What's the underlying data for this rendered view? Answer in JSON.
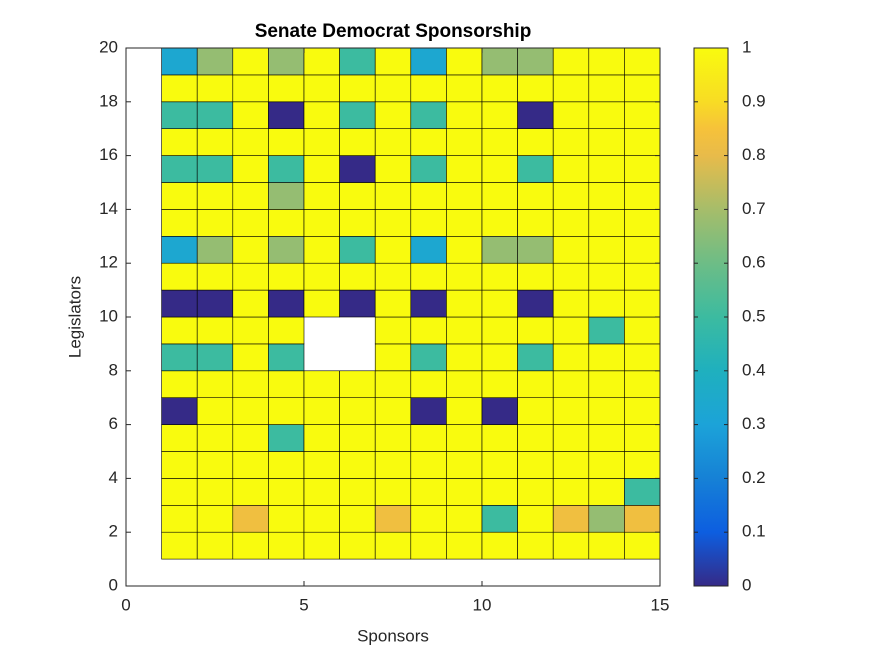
{
  "chart_data": {
    "type": "heatmap",
    "title": "Senate Democrat Sponsorship",
    "x_label": "Sponsors",
    "y_label": "Legislators",
    "x_edges": [
      1,
      2,
      3,
      4,
      5,
      6,
      7,
      8,
      9,
      10,
      11,
      12,
      13,
      14,
      15
    ],
    "y_edges": [
      1,
      2,
      3,
      4,
      5,
      6,
      7,
      8,
      9,
      10,
      11,
      12,
      13,
      14,
      15,
      16,
      17,
      18,
      19,
      20
    ],
    "values": [
      [
        1,
        1,
        1,
        1,
        1,
        1,
        1,
        1,
        1,
        1,
        1,
        1,
        1,
        1
      ],
      [
        1,
        1,
        0.83,
        1,
        1,
        1,
        0.83,
        1,
        1,
        0.5,
        1,
        0.83,
        0.67,
        0.83
      ],
      [
        1,
        1,
        1,
        1,
        1,
        1,
        1,
        1,
        1,
        1,
        1,
        1,
        1,
        0.5
      ],
      [
        1,
        1,
        1,
        1,
        1,
        1,
        1,
        1,
        1,
        1,
        1,
        1,
        1,
        1
      ],
      [
        1,
        1,
        1,
        0.5,
        1,
        1,
        1,
        1,
        1,
        1,
        1,
        1,
        1,
        1
      ],
      [
        0,
        1,
        1,
        1,
        1,
        1,
        1,
        0,
        1,
        0,
        1,
        1,
        1,
        1
      ],
      [
        1,
        1,
        1,
        1,
        1,
        1,
        1,
        1,
        1,
        1,
        1,
        1,
        1,
        1
      ],
      [
        0.5,
        0.5,
        1,
        0.5,
        null,
        null,
        1,
        0.5,
        1,
        1,
        0.5,
        1,
        1,
        1
      ],
      [
        1,
        1,
        1,
        1,
        null,
        null,
        1,
        1,
        1,
        1,
        1,
        1,
        0.5,
        1
      ],
      [
        0,
        0,
        1,
        0,
        1,
        0,
        1,
        0,
        1,
        1,
        0,
        1,
        1,
        1
      ],
      [
        1,
        1,
        1,
        1,
        1,
        1,
        1,
        1,
        1,
        1,
        1,
        1,
        1,
        1
      ],
      [
        0.33,
        0.67,
        1,
        0.67,
        1,
        0.5,
        1,
        0.33,
        1,
        0.67,
        0.67,
        1,
        1,
        1
      ],
      [
        1,
        1,
        1,
        1,
        1,
        1,
        1,
        1,
        1,
        1,
        1,
        1,
        1,
        1
      ],
      [
        1,
        1,
        1,
        0.67,
        1,
        1,
        1,
        1,
        1,
        1,
        1,
        1,
        1,
        1
      ],
      [
        0.5,
        0.5,
        1,
        0.5,
        1,
        0,
        1,
        0.5,
        1,
        1,
        0.5,
        1,
        1,
        1
      ],
      [
        1,
        1,
        1,
        1,
        1,
        1,
        1,
        1,
        1,
        1,
        1,
        1,
        1,
        1
      ],
      [
        0.5,
        0.5,
        1,
        0,
        1,
        0.5,
        1,
        0.5,
        1,
        1,
        0,
        1,
        1,
        1
      ],
      [
        1,
        1,
        1,
        1,
        1,
        1,
        1,
        1,
        1,
        1,
        1,
        1,
        1,
        1
      ],
      [
        0.33,
        0.67,
        1,
        0.67,
        1,
        0.5,
        1,
        0.33,
        1,
        0.67,
        0.67,
        1,
        1,
        1
      ]
    ],
    "xlim": [
      0,
      15
    ],
    "xticks": [
      0,
      5,
      10,
      15
    ],
    "ylim": [
      0,
      20
    ],
    "yticks": [
      0,
      2,
      4,
      6,
      8,
      10,
      12,
      14,
      16,
      18,
      20
    ],
    "clim": [
      0,
      1
    ],
    "cticks": [
      0,
      0.1,
      0.2,
      0.3,
      0.4,
      0.5,
      0.6,
      0.7,
      0.8,
      0.9,
      1
    ],
    "colormap": [
      {
        "at": 0,
        "color": "#352a87"
      },
      {
        "at": 0.1,
        "color": "#0d5ee0"
      },
      {
        "at": 0.2,
        "color": "#1681d6"
      },
      {
        "at": 0.3,
        "color": "#1ca3d8"
      },
      {
        "at": 0.4,
        "color": "#1fb0be"
      },
      {
        "at": 0.5,
        "color": "#3cbba0"
      },
      {
        "at": 0.6,
        "color": "#6dbd86"
      },
      {
        "at": 0.7,
        "color": "#a6bd6a"
      },
      {
        "at": 0.8,
        "color": "#e8bb4a"
      },
      {
        "at": 0.85,
        "color": "#f6c23a"
      },
      {
        "at": 0.9,
        "color": "#f8dc24"
      },
      {
        "at": 1,
        "color": "#f9fb0e"
      }
    ]
  }
}
